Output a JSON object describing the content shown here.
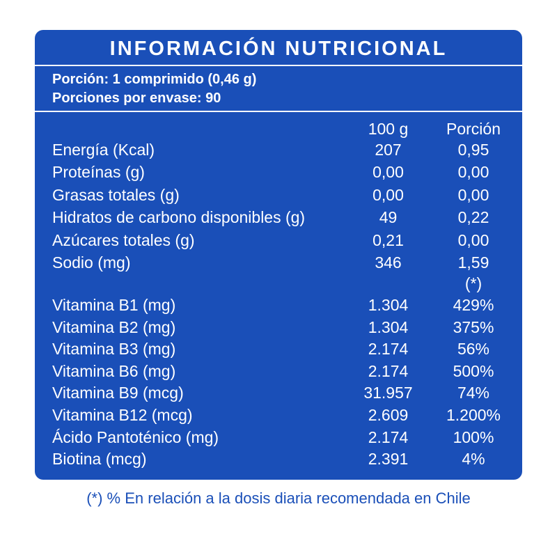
{
  "table": {
    "title": "INFORMACIÓN NUTRICIONAL",
    "portion_line": "Porción: 1 comprimido (0,46 g)",
    "portions_line": "Porciones por envase: 90",
    "col_100g": "100 g",
    "col_portion": "Porción",
    "nutrients": [
      {
        "label": "Energía (Kcal)",
        "per100": "207",
        "portion": "0,95"
      },
      {
        "label": "Proteínas (g)",
        "per100": "0,00",
        "portion": "0,00"
      },
      {
        "label": "Grasas totales (g)",
        "per100": "0,00",
        "portion": "0,00"
      },
      {
        "label": "Hidratos de carbono disponibles (g)",
        "per100": "49",
        "portion": "0,22"
      },
      {
        "label": "Azúcares totales (g)",
        "per100": "0,21",
        "portion": "0,00"
      },
      {
        "label": "Sodio (mg)",
        "per100": "346",
        "portion": "1,59"
      }
    ],
    "vitamin_marker": "(*)",
    "vitamins": [
      {
        "label": "Vitamina B1 (mg)",
        "per100": "1.304",
        "portion": "429%"
      },
      {
        "label": "Vitamina B2 (mg)",
        "per100": "1.304",
        "portion": "375%"
      },
      {
        "label": "Vitamina B3 (mg)",
        "per100": "2.174",
        "portion": "56%"
      },
      {
        "label": "Vitamina B6 (mg)",
        "per100": "2.174",
        "portion": "500%"
      },
      {
        "label": "Vitamina B9 (mcg)",
        "per100": "31.957",
        "portion": "74%"
      },
      {
        "label": "Vitamina B12 (mcg)",
        "per100": "2.609",
        "portion": "1.200%"
      },
      {
        "label": "Ácido Pantoténico (mg)",
        "per100": "2.174",
        "portion": "100%"
      },
      {
        "label": "Biotina (mcg)",
        "per100": "2.391",
        "portion": "4%"
      }
    ]
  },
  "footnote": "(*) % En relación a la dosis diaria recomendada en Chile",
  "colors": {
    "panel": "#1a4fb8",
    "text_on_panel": "#ffffff",
    "footnote": "#1a4fb8"
  }
}
